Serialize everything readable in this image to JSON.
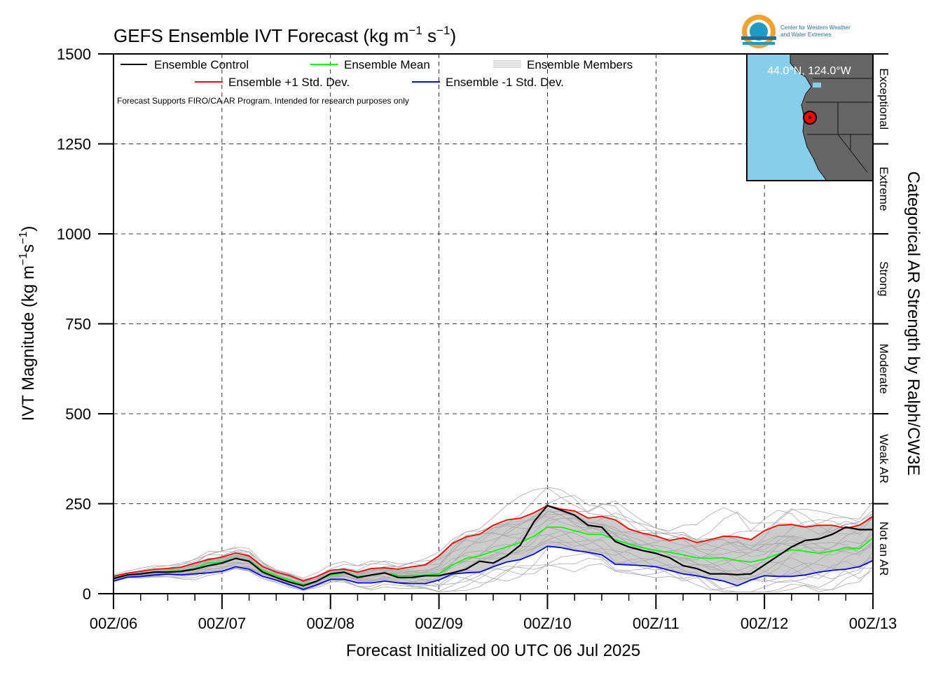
{
  "chart_data": {
    "type": "line",
    "title": "GEFS Ensemble IVT Forecast (kg m",
    "title_sup1": "−1",
    "title_mid": " s",
    "title_sup2": "−1",
    "title_end": ")",
    "ylabel": "IVT Magnitude (kg m",
    "ylabel_sup1": "−1",
    "ylabel_mid": "s",
    "ylabel_sup2": "−1",
    "ylabel_end": ")",
    "xlabel": "Forecast Initialized 00 UTC 06 Jul 2025",
    "right_label": "Categorical AR Strength by Ralph/CW3E",
    "note": "Forecast Supports FIRO/CA AR Program. Intended for research purposes only",
    "ylim": [
      0,
      1500
    ],
    "yticks": [
      0,
      250,
      500,
      750,
      1000,
      1250,
      1500
    ],
    "xlim": [
      0,
      168
    ],
    "xtick_labels": [
      "00Z/06",
      "00Z/07",
      "00Z/08",
      "00Z/09",
      "00Z/10",
      "00Z/11",
      "00Z/12",
      "00Z/13"
    ],
    "categories": [
      {
        "label": "Not an AR",
        "range": [
          0,
          250
        ]
      },
      {
        "label": "Weak AR",
        "range": [
          250,
          500
        ]
      },
      {
        "label": "Moderate",
        "range": [
          500,
          750
        ]
      },
      {
        "label": "Strong",
        "range": [
          750,
          1000
        ]
      },
      {
        "label": "Extreme",
        "range": [
          1000,
          1250
        ]
      },
      {
        "label": "Exceptional",
        "range": [
          1250,
          1500
        ]
      }
    ],
    "grid": true,
    "legend_placement": "top-left",
    "legend": {
      "control": "Ensemble Control",
      "mean": "Ensemble Mean",
      "members": "Ensemble Members",
      "plus_sd": "Ensemble +1 Std. Dev.",
      "minus_sd": "Ensemble -1 Std. Dev."
    },
    "x": [
      0,
      3,
      6,
      9,
      12,
      15,
      18,
      21,
      24,
      27,
      30,
      33,
      36,
      39,
      42,
      45,
      48,
      51,
      54,
      57,
      60,
      63,
      66,
      69,
      72,
      75,
      78,
      81,
      84,
      87,
      90,
      93,
      96,
      99,
      102,
      105,
      108,
      111,
      114,
      117,
      120,
      123,
      126,
      129,
      132,
      135,
      138,
      141,
      144,
      147,
      150,
      153,
      156,
      159,
      162,
      165,
      168
    ],
    "series": [
      {
        "name": "Ensemble Control",
        "color": "#000000",
        "values": [
          42,
          52,
          55,
          60,
          60,
          62,
          68,
          78,
          85,
          98,
          90,
          60,
          45,
          32,
          22,
          35,
          55,
          60,
          45,
          52,
          58,
          45,
          45,
          50,
          50,
          58,
          68,
          90,
          85,
          105,
          135,
          200,
          245,
          232,
          218,
          190,
          185,
          145,
          130,
          120,
          112,
          100,
          78,
          70,
          55,
          55,
          53,
          55,
          80,
          105,
          130,
          148,
          152,
          165,
          185,
          178,
          178
        ]
      },
      {
        "name": "Ensemble Mean",
        "color": "#00ff00",
        "values": [
          42,
          52,
          55,
          60,
          62,
          64,
          70,
          85,
          88,
          97,
          92,
          65,
          50,
          38,
          25,
          35,
          52,
          58,
          48,
          52,
          58,
          50,
          50,
          52,
          55,
          80,
          98,
          105,
          118,
          130,
          142,
          160,
          185,
          185,
          175,
          165,
          165,
          150,
          138,
          128,
          120,
          115,
          108,
          100,
          98,
          100,
          92,
          88,
          96,
          110,
          122,
          118,
          112,
          118,
          128,
          125,
          155
        ]
      },
      {
        "name": "Ensemble +1 Std. Dev.",
        "color": "#ff0000",
        "values": [
          48,
          57,
          62,
          68,
          70,
          74,
          85,
          95,
          102,
          113,
          105,
          75,
          60,
          50,
          35,
          48,
          65,
          68,
          60,
          70,
          72,
          68,
          75,
          80,
          105,
          140,
          158,
          165,
          190,
          205,
          210,
          225,
          245,
          235,
          230,
          210,
          215,
          205,
          180,
          168,
          160,
          148,
          155,
          142,
          150,
          160,
          158,
          150,
          175,
          190,
          192,
          185,
          190,
          190,
          182,
          190,
          215
        ]
      },
      {
        "name": "Ensemble -1 Std. Dev.",
        "color": "#0000ff",
        "values": [
          35,
          46,
          48,
          52,
          54,
          52,
          55,
          58,
          62,
          75,
          68,
          48,
          38,
          25,
          12,
          25,
          40,
          40,
          30,
          30,
          35,
          30,
          28,
          28,
          38,
          55,
          58,
          60,
          75,
          88,
          95,
          110,
          132,
          128,
          120,
          115,
          108,
          82,
          80,
          78,
          75,
          65,
          55,
          50,
          42,
          35,
          22,
          38,
          50,
          48,
          48,
          52,
          60,
          65,
          68,
          75,
          92
        ]
      }
    ],
    "members_band_color": "#cccccc",
    "members_line_color": "#aaaaaa",
    "inset_map": {
      "location_label": "44.0°N, 124.0°W",
      "ocean_color": "#87ceeb",
      "land_color": "#666666",
      "marker_color": "#ff0000"
    },
    "logo": {
      "line1": "Center for Western Weather",
      "line2": "and Water Extremes"
    }
  }
}
